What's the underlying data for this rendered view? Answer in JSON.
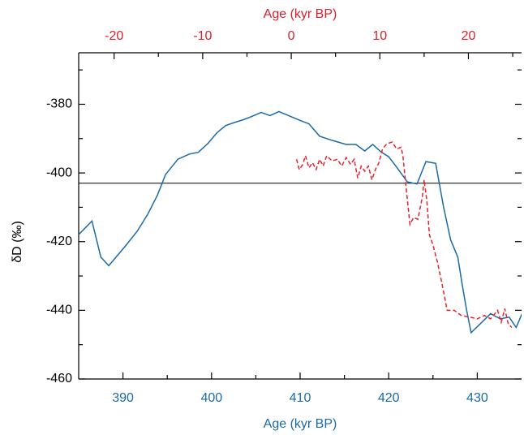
{
  "chart_data": {
    "type": "line",
    "xlabel": "Age (kyr BP)",
    "x2label": "Age (kyr BP)",
    "ylabel": "δD (‰)",
    "x_color": "#1a6aa8",
    "x2_color": "#d7202e",
    "xlim": [
      385,
      435
    ],
    "xticks": [
      390,
      400,
      410,
      420,
      430
    ],
    "x_minor_ticks": [
      395,
      405,
      415,
      425
    ],
    "x2lim": [
      -24,
      26
    ],
    "x2ticks": [
      -20,
      -10,
      0,
      10,
      20
    ],
    "x2_minor_ticks": [
      -15,
      -5,
      5,
      15,
      25
    ],
    "ylim": [
      -460,
      -365
    ],
    "yticks": [
      -460,
      -440,
      -420,
      -400,
      -380
    ],
    "y_minor_ticks": [
      -450,
      -430,
      -410,
      -390,
      -370
    ],
    "reference_line": -403,
    "series": [
      {
        "color": "#1a6aa8",
        "axis": "x",
        "dashed": false,
        "x": [
          384.6,
          386.5,
          387.5,
          388.4,
          390.2,
          391.6,
          392.8,
          393.9,
          394.8,
          396.2,
          397.5,
          398.5,
          399.6,
          400.6,
          401.6,
          402.7,
          403.6,
          404.5,
          405.6,
          406.6,
          407.6,
          408.7,
          410,
          411,
          412.2,
          413.6,
          415.2,
          416.3,
          417.3,
          418.2,
          419.1,
          420,
          420.9,
          422.1,
          423.2,
          424.2,
          425.3,
          426.2,
          427.0,
          427.8,
          428.3,
          428.8,
          429.3,
          430.5,
          431.5,
          432.6,
          433.6,
          434.4,
          435.2,
          435.6
        ],
        "values": [
          -419,
          -414,
          -424.5,
          -427,
          -421.5,
          -417,
          -412,
          -406.4,
          -400.5,
          -396,
          -394.5,
          -394,
          -391.4,
          -388.3,
          -386.2,
          -385.2,
          -384.5,
          -383.6,
          -382.4,
          -383.3,
          -382.1,
          -383.3,
          -384.7,
          -385.7,
          -389.3,
          -390.5,
          -391.7,
          -391.7,
          -393.6,
          -391.7,
          -393.8,
          -395.3,
          -398.3,
          -402.6,
          -403.2,
          -396.7,
          -397.2,
          -410,
          -419.5,
          -424.5,
          -432.5,
          -440,
          -446.5,
          -443.5,
          -441,
          -442.5,
          -442,
          -445,
          -440,
          -441.5
        ]
      },
      {
        "color": "#e8212c",
        "axis": "x2",
        "dashed": true,
        "x": [
          0.6,
          0.9,
          1.3,
          1.6,
          2.0,
          2.4,
          2.8,
          3.2,
          3.6,
          4.0,
          4.6,
          5.2,
          5.7,
          6.2,
          6.7,
          7.1,
          7.5,
          7.9,
          8.3,
          8.7,
          9.1,
          9.5,
          9.9,
          10.3,
          10.8,
          11.4,
          11.9,
          12.4,
          12.6,
          13.0,
          13.4,
          13.8,
          14.3,
          14.8,
          15.0,
          15.3,
          15.6,
          16.0,
          16.5,
          17.0,
          17.6,
          18.4,
          19.2,
          20.2,
          21.0,
          21.8,
          22.5,
          23.3,
          23.7,
          24.1,
          24.5,
          24.9
        ],
        "values": [
          -396,
          -399,
          -397.5,
          -395,
          -398.5,
          -397,
          -399,
          -396,
          -398,
          -395,
          -396.5,
          -396,
          -398,
          -395.5,
          -397.5,
          -396,
          -401.5,
          -398,
          -399.5,
          -398,
          -402,
          -399,
          -397,
          -393,
          -391.5,
          -391,
          -393,
          -392.5,
          -395,
          -405,
          -415,
          -413,
          -413.5,
          -407,
          -402,
          -408,
          -418,
          -421,
          -426,
          -432,
          -440,
          -440,
          -441.5,
          -442,
          -442.5,
          -441.5,
          -442.5,
          -440,
          -443.5,
          -439.5,
          -444,
          -445
        ]
      }
    ]
  }
}
